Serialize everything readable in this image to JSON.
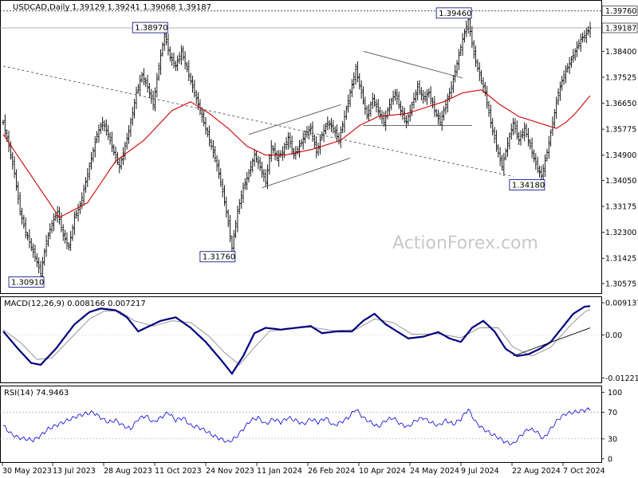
{
  "header": {
    "symbol": "USDCAD,Daily",
    "ohlc": "1.39129 1.39241 1.39068 1.39187"
  },
  "watermark": "ActionForex.com",
  "colors": {
    "price": "#000000",
    "ma": "#cc0000",
    "macd_main": "#000080",
    "macd_signal": "#8c8c8c",
    "rsi": "#0000dd",
    "guide": "#555555"
  },
  "chart_data": [
    {
      "type": "line",
      "panel": "price",
      "x_labels": [
        "30 May 2023",
        "13 Jul 2023",
        "28 Aug 2023",
        "11 Oct 2023",
        "24 Nov 2023",
        "11 Jan 2024",
        "26 Feb 2024",
        "10 Apr 2024",
        "24 May 2024",
        "9 Jul 2024",
        "22 Aug 2024",
        "7 Oct 2024"
      ],
      "ylim": [
        1.3025,
        1.401
      ],
      "y_ticks": [
        "1.39760",
        "1.39187",
        "1.38400",
        "1.37525",
        "1.36650",
        "1.35775",
        "1.34900",
        "1.34050",
        "1.33175",
        "1.32300",
        "1.31425",
        "1.30575"
      ],
      "annotations": [
        {
          "label": "1.30910",
          "value": 1.3091
        },
        {
          "label": "1.38970",
          "value": 1.3897
        },
        {
          "label": "1.31760",
          "value": 1.3176
        },
        {
          "label": "1.39460",
          "value": 1.3946
        },
        {
          "label": "1.34180",
          "value": 1.3418
        }
      ],
      "levels": [
        {
          "label": "1.39760",
          "value": 1.3976,
          "style": "dashed"
        },
        {
          "label": "1.39187",
          "value": 1.39187,
          "style": "solid"
        }
      ],
      "close": [
        [
          0,
          1.36
        ],
        [
          3,
          1.352
        ],
        [
          6,
          1.343
        ],
        [
          9,
          1.33
        ],
        [
          12,
          1.323
        ],
        [
          15,
          1.318
        ],
        [
          18,
          1.313
        ],
        [
          20,
          1.3091
        ],
        [
          23,
          1.32
        ],
        [
          26,
          1.326
        ],
        [
          29,
          1.33
        ],
        [
          32,
          1.322
        ],
        [
          35,
          1.318
        ],
        [
          38,
          1.328
        ],
        [
          41,
          1.332
        ],
        [
          44,
          1.34
        ],
        [
          47,
          1.348
        ],
        [
          50,
          1.356
        ],
        [
          53,
          1.36
        ],
        [
          56,
          1.356
        ],
        [
          59,
          1.35
        ],
        [
          62,
          1.345
        ],
        [
          65,
          1.352
        ],
        [
          68,
          1.36
        ],
        [
          71,
          1.37
        ],
        [
          74,
          1.376
        ],
        [
          77,
          1.372
        ],
        [
          80,
          1.366
        ],
        [
          83,
          1.379
        ],
        [
          86,
          1.3897
        ],
        [
          89,
          1.382
        ],
        [
          92,
          1.379
        ],
        [
          95,
          1.384
        ],
        [
          98,
          1.378
        ],
        [
          101,
          1.372
        ],
        [
          104,
          1.366
        ],
        [
          107,
          1.36
        ],
        [
          110,
          1.354
        ],
        [
          113,
          1.348
        ],
        [
          116,
          1.34
        ],
        [
          119,
          1.33
        ],
        [
          122,
          1.3176
        ],
        [
          125,
          1.33
        ],
        [
          128,
          1.338
        ],
        [
          131,
          1.343
        ],
        [
          134,
          1.349
        ],
        [
          137,
          1.345
        ],
        [
          140,
          1.34
        ],
        [
          143,
          1.352
        ],
        [
          146,
          1.348
        ],
        [
          149,
          1.35
        ],
        [
          152,
          1.355
        ],
        [
          155,
          1.349
        ],
        [
          158,
          1.352
        ],
        [
          161,
          1.356
        ],
        [
          164,
          1.358
        ],
        [
          167,
          1.35
        ],
        [
          170,
          1.356
        ],
        [
          173,
          1.36
        ],
        [
          176,
          1.358
        ],
        [
          179,
          1.354
        ],
        [
          182,
          1.362
        ],
        [
          185,
          1.37
        ],
        [
          188,
          1.378
        ],
        [
          191,
          1.37
        ],
        [
          194,
          1.362
        ],
        [
          197,
          1.368
        ],
        [
          200,
          1.364
        ],
        [
          203,
          1.36
        ],
        [
          206,
          1.366
        ],
        [
          209,
          1.37
        ],
        [
          212,
          1.364
        ],
        [
          215,
          1.36
        ],
        [
          218,
          1.366
        ],
        [
          221,
          1.372
        ],
        [
          224,
          1.368
        ],
        [
          227,
          1.37
        ],
        [
          230,
          1.364
        ],
        [
          233,
          1.36
        ],
        [
          236,
          1.366
        ],
        [
          239,
          1.372
        ],
        [
          242,
          1.38
        ],
        [
          245,
          1.388
        ],
        [
          248,
          1.3946
        ],
        [
          251,
          1.383
        ],
        [
          254,
          1.376
        ],
        [
          257,
          1.37
        ],
        [
          260,
          1.36
        ],
        [
          263,
          1.352
        ],
        [
          266,
          1.345
        ],
        [
          269,
          1.353
        ],
        [
          272,
          1.36
        ],
        [
          275,
          1.354
        ],
        [
          278,
          1.358
        ],
        [
          281,
          1.352
        ],
        [
          284,
          1.346
        ],
        [
          287,
          1.3418
        ],
        [
          290,
          1.35
        ],
        [
          293,
          1.36
        ],
        [
          296,
          1.37
        ],
        [
          299,
          1.376
        ],
        [
          302,
          1.38
        ],
        [
          305,
          1.384
        ],
        [
          308,
          1.388
        ],
        [
          311,
          1.39
        ],
        [
          313,
          1.39187
        ]
      ],
      "ma": [
        [
          0,
          1.356
        ],
        [
          15,
          1.342
        ],
        [
          30,
          1.328
        ],
        [
          45,
          1.333
        ],
        [
          60,
          1.347
        ],
        [
          75,
          1.354
        ],
        [
          90,
          1.364
        ],
        [
          100,
          1.367
        ],
        [
          110,
          1.363
        ],
        [
          120,
          1.358
        ],
        [
          130,
          1.352
        ],
        [
          140,
          1.349
        ],
        [
          150,
          1.349
        ],
        [
          165,
          1.351
        ],
        [
          180,
          1.354
        ],
        [
          190,
          1.359
        ],
        [
          200,
          1.362
        ],
        [
          215,
          1.363
        ],
        [
          225,
          1.365
        ],
        [
          235,
          1.367
        ],
        [
          245,
          1.37
        ],
        [
          255,
          1.371
        ],
        [
          265,
          1.366
        ],
        [
          275,
          1.362
        ],
        [
          285,
          1.36
        ],
        [
          295,
          1.358
        ],
        [
          300,
          1.36
        ],
        [
          305,
          1.363
        ],
        [
          313,
          1.369
        ]
      ],
      "channels": [
        [
          [
            131,
            1.356
          ],
          [
            180,
            1.366
          ]
        ],
        [
          [
            138,
            1.338
          ],
          [
            185,
            1.348
          ]
        ],
        [
          [
            192,
            1.384
          ],
          [
            245,
            1.375
          ]
        ],
        [
          [
            192,
            1.359
          ],
          [
            250,
            1.359
          ]
        ],
        [
          [
            0,
            1.379
          ],
          [
            272,
            1.3418
          ]
        ]
      ]
    },
    {
      "type": "line",
      "panel": "macd",
      "title": "MACD(12,26,9) 0.008166 0.007217",
      "ylim": [
        -0.0135,
        0.0105
      ],
      "y_ticks": [
        "0.009137",
        "0.00",
        "-0.012213"
      ],
      "main": [
        [
          0,
          0.001
        ],
        [
          8,
          -0.004
        ],
        [
          15,
          -0.008
        ],
        [
          20,
          -0.0085
        ],
        [
          28,
          -0.004
        ],
        [
          38,
          0.003
        ],
        [
          46,
          0.0065
        ],
        [
          52,
          0.0075
        ],
        [
          60,
          0.007
        ],
        [
          66,
          0.005
        ],
        [
          72,
          0.001
        ],
        [
          78,
          0.0025
        ],
        [
          84,
          0.004
        ],
        [
          92,
          0.005
        ],
        [
          100,
          0.002
        ],
        [
          108,
          -0.002
        ],
        [
          116,
          -0.007
        ],
        [
          122,
          -0.011
        ],
        [
          128,
          -0.006
        ],
        [
          134,
          0.0005
        ],
        [
          140,
          0.002
        ],
        [
          148,
          0.0015
        ],
        [
          156,
          0.002
        ],
        [
          164,
          0.0025
        ],
        [
          170,
          0.0005
        ],
        [
          178,
          0.001
        ],
        [
          186,
          0.001
        ],
        [
          192,
          0.004
        ],
        [
          198,
          0.006
        ],
        [
          204,
          0.003
        ],
        [
          210,
          0.001
        ],
        [
          216,
          -0.001
        ],
        [
          224,
          -0.0005
        ],
        [
          232,
          0.0008
        ],
        [
          238,
          -0.001
        ],
        [
          244,
          -0.002
        ],
        [
          250,
          0.002
        ],
        [
          256,
          0.004
        ],
        [
          262,
          0.001
        ],
        [
          268,
          -0.004
        ],
        [
          274,
          -0.006
        ],
        [
          280,
          -0.0055
        ],
        [
          286,
          -0.004
        ],
        [
          292,
          -0.002
        ],
        [
          298,
          0.002
        ],
        [
          304,
          0.006
        ],
        [
          310,
          0.008
        ],
        [
          313,
          0.0082
        ]
      ],
      "signal": [
        [
          0,
          0.0015
        ],
        [
          10,
          -0.0025
        ],
        [
          18,
          -0.007
        ],
        [
          26,
          -0.0065
        ],
        [
          36,
          -0.001
        ],
        [
          46,
          0.0045
        ],
        [
          54,
          0.0068
        ],
        [
          62,
          0.0068
        ],
        [
          70,
          0.004
        ],
        [
          80,
          0.0025
        ],
        [
          90,
          0.004
        ],
        [
          100,
          0.0035
        ],
        [
          110,
          -0.0005
        ],
        [
          118,
          -0.005
        ],
        [
          126,
          -0.0085
        ],
        [
          134,
          -0.0035
        ],
        [
          142,
          0.001
        ],
        [
          152,
          0.0018
        ],
        [
          164,
          0.0022
        ],
        [
          176,
          0.0012
        ],
        [
          188,
          0.0015
        ],
        [
          198,
          0.0045
        ],
        [
          208,
          0.0035
        ],
        [
          218,
          0.0002
        ],
        [
          232,
          0.0003
        ],
        [
          244,
          -0.0008
        ],
        [
          254,
          0.002
        ],
        [
          264,
          0.002
        ],
        [
          272,
          -0.0035
        ],
        [
          282,
          -0.006
        ],
        [
          292,
          -0.0035
        ],
        [
          302,
          0.0025
        ],
        [
          310,
          0.0065
        ],
        [
          313,
          0.0072
        ]
      ],
      "trendline": [
        [
          272,
          -0.006
        ],
        [
          313,
          0.002
        ]
      ]
    },
    {
      "type": "line",
      "panel": "rsi",
      "title": "RSI(14) 74.9463",
      "ylim": [
        -5,
        108
      ],
      "y_ticks": [
        "100",
        "70",
        "30",
        "0"
      ],
      "levels": [
        70,
        30
      ],
      "values": [
        [
          0,
          50
        ],
        [
          4,
          38
        ],
        [
          8,
          32
        ],
        [
          12,
          30
        ],
        [
          16,
          28
        ],
        [
          20,
          35
        ],
        [
          24,
          45
        ],
        [
          28,
          50
        ],
        [
          32,
          55
        ],
        [
          36,
          60
        ],
        [
          40,
          65
        ],
        [
          44,
          68
        ],
        [
          48,
          70
        ],
        [
          52,
          62
        ],
        [
          56,
          55
        ],
        [
          60,
          58
        ],
        [
          64,
          50
        ],
        [
          68,
          45
        ],
        [
          72,
          60
        ],
        [
          76,
          65
        ],
        [
          80,
          55
        ],
        [
          84,
          62
        ],
        [
          88,
          70
        ],
        [
          92,
          58
        ],
        [
          96,
          62
        ],
        [
          100,
          50
        ],
        [
          104,
          48
        ],
        [
          108,
          42
        ],
        [
          112,
          35
        ],
        [
          116,
          30
        ],
        [
          120,
          25
        ],
        [
          124,
          32
        ],
        [
          128,
          45
        ],
        [
          132,
          58
        ],
        [
          136,
          62
        ],
        [
          140,
          52
        ],
        [
          144,
          60
        ],
        [
          148,
          55
        ],
        [
          152,
          62
        ],
        [
          156,
          58
        ],
        [
          160,
          52
        ],
        [
          164,
          60
        ],
        [
          168,
          55
        ],
        [
          172,
          62
        ],
        [
          176,
          50
        ],
        [
          180,
          55
        ],
        [
          184,
          62
        ],
        [
          188,
          75
        ],
        [
          192,
          62
        ],
        [
          196,
          55
        ],
        [
          200,
          48
        ],
        [
          204,
          58
        ],
        [
          208,
          62
        ],
        [
          212,
          52
        ],
        [
          216,
          48
        ],
        [
          220,
          58
        ],
        [
          224,
          62
        ],
        [
          228,
          55
        ],
        [
          232,
          50
        ],
        [
          236,
          58
        ],
        [
          240,
          52
        ],
        [
          244,
          60
        ],
        [
          248,
          75
        ],
        [
          252,
          55
        ],
        [
          256,
          45
        ],
        [
          260,
          38
        ],
        [
          264,
          32
        ],
        [
          268,
          25
        ],
        [
          272,
          22
        ],
        [
          276,
          35
        ],
        [
          280,
          45
        ],
        [
          284,
          42
        ],
        [
          288,
          30
        ],
        [
          292,
          45
        ],
        [
          296,
          60
        ],
        [
          300,
          68
        ],
        [
          304,
          70
        ],
        [
          308,
          72
        ],
        [
          313,
          75
        ]
      ]
    }
  ]
}
